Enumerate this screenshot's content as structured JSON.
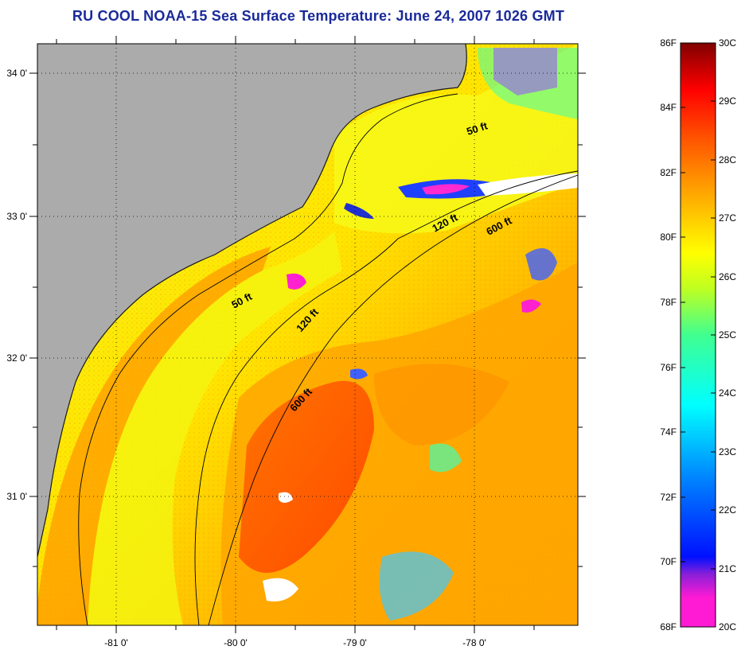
{
  "title": "RU COOL  NOAA-15  Sea Surface Temperature:  June 24, 2007 1026 GMT",
  "map": {
    "lon_ticks": [
      "-81 0'",
      "-80 0'",
      "-79 0'",
      "-78 0'"
    ],
    "lat_ticks": [
      "34 0'",
      "33 0'",
      "32 0'",
      "31 0'"
    ],
    "land_color": "#ababab",
    "contours": [
      {
        "label": "50 ft"
      },
      {
        "label": "120 ft"
      },
      {
        "label": "600 ft"
      },
      {
        "label": "50 ft"
      },
      {
        "label": "120 ft"
      },
      {
        "label": "600 ft"
      }
    ]
  },
  "colorbar": {
    "fahrenheit": [
      "86F",
      "84F",
      "82F",
      "80F",
      "78F",
      "76F",
      "74F",
      "72F",
      "70F",
      "68F"
    ],
    "celsius": [
      "30C",
      "29C",
      "28C",
      "27C",
      "26C",
      "25C",
      "24C",
      "23C",
      "22C",
      "21C",
      "20C"
    ],
    "colors": [
      "#ff1ad4",
      "#8a1fd8",
      "#0010ff",
      "#0080ff",
      "#00ffff",
      "#40ff90",
      "#c0ff20",
      "#ffff00",
      "#ffa000",
      "#ff5000",
      "#ff0000",
      "#800000"
    ]
  }
}
